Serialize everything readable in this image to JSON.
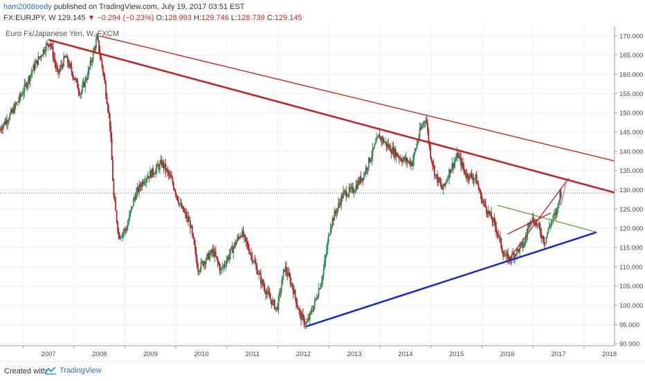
{
  "header": {
    "username": "ham2008oody",
    "published_text": "published on TradingView.com, July 19, 2017 03:51 EST",
    "symbol": "FX:EURJPY, W",
    "last": "129.145",
    "change_arrow": "▼",
    "change": "−0.294 (−0.23%)",
    "o_label": "O:",
    "o_value": "128.993",
    "h_label": "H:",
    "h_value": "129.746",
    "l_label": "L:",
    "l_value": "128.739",
    "c_label": "C:",
    "c_value": "129.145"
  },
  "chart_title": "Euro Fx/Japanese Yen, W, FXCM",
  "footer": {
    "created_with": "Created with",
    "brand": "TradingView"
  },
  "colors": {
    "up": "#2e8b57",
    "down": "#b22222",
    "red_line": "#cc1f1f",
    "blue_line": "#1c2ad1",
    "green_line": "#6aa84f",
    "grid": "#eeeeee"
  },
  "chart_data": {
    "type": "candlestick",
    "title": "Euro Fx/Japanese Yen, W, FXCM",
    "x_ticks": [
      "2007",
      "2008",
      "2009",
      "2010",
      "2011",
      "2012",
      "2013",
      "2014",
      "2015",
      "2016",
      "2017",
      "2018"
    ],
    "x_range": [
      2006.55,
      2018.6
    ],
    "y_ticks": [
      "90.000",
      "95.000",
      "100.000",
      "105.000",
      "110.000",
      "115.000",
      "120.000",
      "125.000",
      "130.000",
      "135.000",
      "140.000",
      "145.000",
      "150.000",
      "155.000",
      "160.000",
      "165.000",
      "170.000"
    ],
    "ylim": [
      89.5,
      172.5
    ],
    "current_price": 129.145,
    "price_path": [
      [
        2006.55,
        145.5
      ],
      [
        2006.8,
        150.0
      ],
      [
        2007.0,
        155.0
      ],
      [
        2007.2,
        161.0
      ],
      [
        2007.45,
        167.0
      ],
      [
        2007.55,
        168.5
      ],
      [
        2007.7,
        160.0
      ],
      [
        2007.85,
        164.5
      ],
      [
        2008.0,
        160.0
      ],
      [
        2008.15,
        155.0
      ],
      [
        2008.3,
        160.5
      ],
      [
        2008.47,
        169.5
      ],
      [
        2008.6,
        160.0
      ],
      [
        2008.72,
        148.0
      ],
      [
        2008.8,
        128.0
      ],
      [
        2008.9,
        118.0
      ],
      [
        2009.05,
        120.0
      ],
      [
        2009.2,
        128.0
      ],
      [
        2009.4,
        133.0
      ],
      [
        2009.6,
        135.0
      ],
      [
        2009.75,
        137.0
      ],
      [
        2009.95,
        132.0
      ],
      [
        2010.1,
        126.0
      ],
      [
        2010.3,
        121.0
      ],
      [
        2010.45,
        109.5
      ],
      [
        2010.6,
        112.0
      ],
      [
        2010.75,
        114.0
      ],
      [
        2010.9,
        109.0
      ],
      [
        2011.1,
        114.0
      ],
      [
        2011.3,
        119.0
      ],
      [
        2011.5,
        113.0
      ],
      [
        2011.7,
        106.0
      ],
      [
        2011.85,
        102.0
      ],
      [
        2012.0,
        99.0
      ],
      [
        2012.15,
        110.0
      ],
      [
        2012.3,
        105.0
      ],
      [
        2012.45,
        97.5
      ],
      [
        2012.58,
        95.0
      ],
      [
        2012.75,
        101.0
      ],
      [
        2012.9,
        108.0
      ],
      [
        2013.05,
        121.0
      ],
      [
        2013.3,
        129.0
      ],
      [
        2013.5,
        130.0
      ],
      [
        2013.7,
        134.0
      ],
      [
        2013.85,
        139.0
      ],
      [
        2014.0,
        144.0
      ],
      [
        2014.2,
        141.0
      ],
      [
        2014.45,
        138.0
      ],
      [
        2014.65,
        137.0
      ],
      [
        2014.8,
        145.0
      ],
      [
        2014.92,
        149.0
      ],
      [
        2015.0,
        140.0
      ],
      [
        2015.1,
        134.0
      ],
      [
        2015.25,
        130.0
      ],
      [
        2015.4,
        135.5
      ],
      [
        2015.55,
        139.0
      ],
      [
        2015.7,
        134.0
      ],
      [
        2015.9,
        133.0
      ],
      [
        2016.0,
        128.0
      ],
      [
        2016.15,
        124.0
      ],
      [
        2016.3,
        120.0
      ],
      [
        2016.45,
        113.0
      ],
      [
        2016.55,
        112.0
      ],
      [
        2016.7,
        114.0
      ],
      [
        2016.85,
        116.0
      ],
      [
        2016.97,
        123.0
      ],
      [
        2017.1,
        121.0
      ],
      [
        2017.25,
        116.5
      ],
      [
        2017.35,
        121.0
      ],
      [
        2017.48,
        124.0
      ],
      [
        2017.55,
        129.1
      ]
    ],
    "annotations": [
      {
        "name": "upper-resistance-thin",
        "color": "#cc1f1f",
        "points": [
          [
            2008.5,
            170.0
          ],
          [
            2018.6,
            137.5
          ]
        ]
      },
      {
        "name": "main-resistance-thick",
        "color": "#cc1f1f",
        "points": [
          [
            2007.5,
            169.0
          ],
          [
            2018.6,
            129.3
          ]
        ]
      },
      {
        "name": "main-support-blue",
        "color": "#1c2ad1",
        "points": [
          [
            2012.55,
            94.5
          ],
          [
            2018.25,
            119.0
          ]
        ]
      },
      {
        "name": "green-trendline",
        "color": "#6aa84f",
        "points": [
          [
            2016.3,
            126.0
          ],
          [
            2018.25,
            119.0
          ]
        ]
      },
      {
        "name": "red-channel-lower",
        "color": "#cc1f1f",
        "points": [
          [
            2016.5,
            111.5
          ],
          [
            2017.7,
            133.0
          ]
        ]
      },
      {
        "name": "red-channel-upper",
        "color": "#cc1f1f",
        "points": [
          [
            2016.5,
            118.5
          ],
          [
            2017.35,
            124.0
          ]
        ]
      },
      {
        "name": "projection-pink",
        "color": "#e06080",
        "points": [
          [
            2017.55,
            126.0
          ],
          [
            2017.65,
            132.0
          ]
        ]
      }
    ]
  }
}
